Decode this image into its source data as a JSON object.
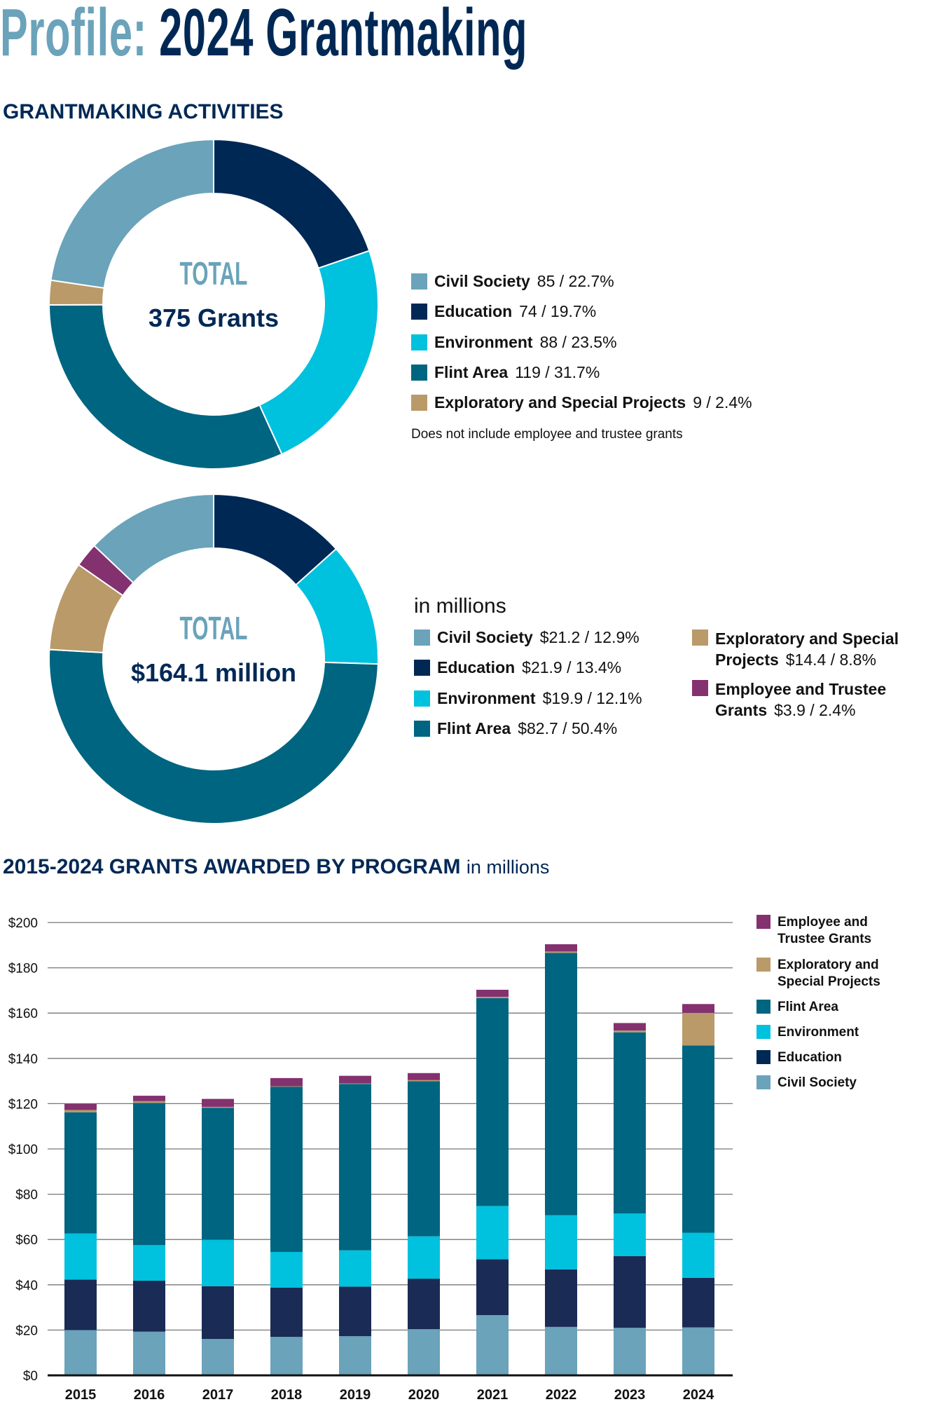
{
  "header": {
    "title_light": "Profile:",
    "title_dark": "2024 Grantmaking"
  },
  "colors": {
    "civil_society": "#6aa3ba",
    "education": "#002855",
    "education_bar": "#1a2b55",
    "environment": "#00c1de",
    "flint_area": "#006580",
    "exploratory": "#b99a68",
    "employee_trustee": "#84316f",
    "title_light": "#6aa3ba",
    "title_dark": "#002855"
  },
  "activities": {
    "heading": "GRANTMAKING ACTIVITIES",
    "count_chart": {
      "type": "pie",
      "center_label": "TOTAL",
      "center_value": "375 Grants",
      "legend": [
        {
          "key": "civil_society",
          "name": "Civil Society",
          "value_text": "85 / 22.7%"
        },
        {
          "key": "education",
          "name": "Education",
          "value_text": "74 / 19.7%"
        },
        {
          "key": "environment",
          "name": "Environment",
          "value_text": "88 / 23.5%"
        },
        {
          "key": "flint_area",
          "name": "Flint Area",
          "value_text": "119 / 31.7%"
        },
        {
          "key": "exploratory",
          "name": "Exploratory and Special Projects",
          "value_text": "9 / 2.4%"
        }
      ],
      "note": "Does not include employee and trustee grants"
    },
    "amount_chart": {
      "type": "pie",
      "center_label": "TOTAL",
      "center_value": "$164.1 million",
      "unit": "in millions",
      "legend": [
        {
          "key": "civil_society",
          "name": "Civil Society",
          "value_text": "$21.2 / 12.9%"
        },
        {
          "key": "education",
          "name": "Education",
          "value_text": "$21.9 / 13.4%"
        },
        {
          "key": "environment",
          "name": "Environment",
          "value_text": "$19.9 / 12.1%"
        },
        {
          "key": "flint_area",
          "name": "Flint Area",
          "value_text": "$82.7 / 50.4%"
        },
        {
          "key": "exploratory",
          "name": "Exploratory and Special Projects",
          "value_text": "$14.4 / 8.8%"
        },
        {
          "key": "employee_trustee",
          "name": "Employee and Trustee Grants",
          "value_text": "$3.9 / 2.4%"
        }
      ]
    }
  },
  "chart_data": [
    {
      "type": "pie",
      "slices_order": [
        "education",
        "environment",
        "flint_area",
        "exploratory",
        "civil_society"
      ],
      "values": {
        "civil_society": 85,
        "education": 74,
        "environment": 88,
        "flint_area": 119,
        "exploratory": 9
      }
    },
    {
      "type": "pie",
      "slices_order": [
        "education",
        "environment",
        "flint_area",
        "exploratory",
        "employee_trustee",
        "civil_society"
      ],
      "values": {
        "civil_society": 21.2,
        "education": 21.9,
        "environment": 19.9,
        "flint_area": 82.7,
        "exploratory": 14.4,
        "employee_trustee": 3.9
      }
    },
    {
      "type": "bar",
      "stacked": true,
      "title": "2015-2024 GRANTS AWARDED BY PROGRAM",
      "subtitle": "in millions",
      "categories": [
        "2015",
        "2016",
        "2017",
        "2018",
        "2019",
        "2020",
        "2021",
        "2022",
        "2023",
        "2024"
      ],
      "ylim": [
        0,
        200
      ],
      "yticks": [
        "$0",
        "$20",
        "$40",
        "$60",
        "$80",
        "$100",
        "$120",
        "$140",
        "$160",
        "$180",
        "$200"
      ],
      "grid": true,
      "legend_position": "right",
      "series": [
        {
          "key": "civil_society",
          "name": "Civil Society",
          "values": [
            20.0,
            19.3,
            16.1,
            17.0,
            17.3,
            20.4,
            26.6,
            21.4,
            21.0,
            21.2
          ]
        },
        {
          "key": "education",
          "name": "Education",
          "values": [
            22.3,
            22.5,
            23.3,
            21.7,
            21.9,
            22.3,
            24.7,
            25.4,
            31.7,
            21.9
          ]
        },
        {
          "key": "environment",
          "name": "Environment",
          "values": [
            20.4,
            15.7,
            20.5,
            15.8,
            16.0,
            18.7,
            23.5,
            23.9,
            18.8,
            19.9
          ]
        },
        {
          "key": "flint_area",
          "name": "Flint Area",
          "values": [
            53.5,
            62.8,
            58.3,
            73.0,
            73.5,
            68.5,
            91.8,
            115.9,
            80.0,
            82.7
          ]
        },
        {
          "key": "exploratory",
          "name": "Exploratory and Special Projects",
          "values": [
            1.0,
            0.8,
            0.4,
            0.2,
            0.2,
            0.5,
            0.6,
            0.6,
            0.8,
            14.4
          ]
        },
        {
          "key": "employee_trustee",
          "name": "Employee and Trustee Grants",
          "values": [
            2.7,
            2.4,
            3.5,
            3.6,
            3.4,
            3.1,
            3.1,
            3.2,
            3.3,
            3.9
          ]
        }
      ],
      "legend": [
        {
          "key": "employee_trustee",
          "name": "Employee and Trustee Grants"
        },
        {
          "key": "exploratory",
          "name": "Exploratory and Special Projects"
        },
        {
          "key": "flint_area",
          "name": "Flint Area"
        },
        {
          "key": "environment",
          "name": "Environment"
        },
        {
          "key": "education",
          "name": "Education"
        },
        {
          "key": "civil_society",
          "name": "Civil Society"
        }
      ]
    }
  ]
}
